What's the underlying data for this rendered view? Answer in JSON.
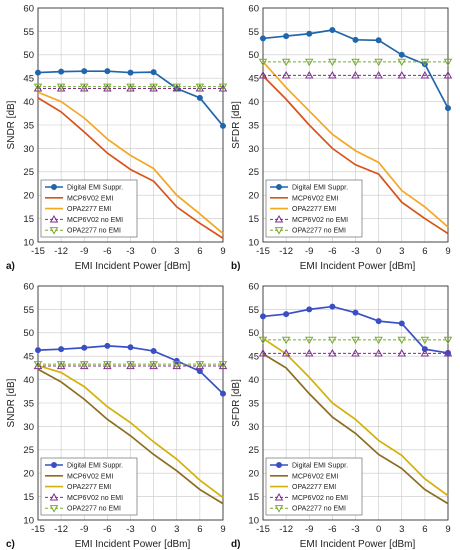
{
  "chart_data": [
    {
      "type": "line",
      "panel_label": "a)",
      "xlabel": "EMI Incident Power [dBm]",
      "ylabel": "SNDR [dB]",
      "x": [
        -15,
        -12,
        -9,
        -6,
        -3,
        0,
        3,
        6,
        9
      ],
      "xticks": [
        "-15",
        "-12",
        "-9",
        "-6",
        "-3",
        "0",
        "3",
        "6",
        "9"
      ],
      "ylim": [
        10,
        60
      ],
      "yticks": [
        "10",
        "15",
        "20",
        "25",
        "30",
        "35",
        "40",
        "45",
        "50",
        "55",
        "60"
      ],
      "grid": true,
      "legend_position": "lower-left",
      "series": [
        {
          "name": "Digital EMI Suppr.",
          "color": "#2166ac",
          "marker": "circle",
          "values": [
            46.2,
            46.4,
            46.5,
            46.5,
            46.2,
            46.3,
            42.8,
            40.8,
            34.8
          ]
        },
        {
          "name": "MCP6V02 EMI",
          "color": "#d95319",
          "marker": "none",
          "values": [
            40.8,
            37.8,
            33.5,
            29.0,
            25.5,
            23.0,
            17.5,
            14.0,
            10.8
          ]
        },
        {
          "name": "OPA2277 EMI",
          "color": "#f5a623",
          "marker": "none",
          "values": [
            42.0,
            40.0,
            36.5,
            32.0,
            28.5,
            25.7,
            20.0,
            16.0,
            11.8
          ]
        },
        {
          "name": "MCP6V02 no EMI",
          "color": "#7e2f8e",
          "marker": "triangle-up",
          "values": [
            42.8,
            42.8,
            42.8,
            42.8,
            42.8,
            42.8,
            42.8,
            42.8,
            42.8
          ]
        },
        {
          "name": "OPA2277 no EMI",
          "color": "#77ac30",
          "marker": "triangle-down",
          "values": [
            43.2,
            43.2,
            43.2,
            43.2,
            43.2,
            43.2,
            43.2,
            43.2,
            43.2
          ]
        }
      ]
    },
    {
      "type": "line",
      "panel_label": "b)",
      "xlabel": "EMI Incident Power [dBm]",
      "ylabel": "SFDR [dB]",
      "x": [
        -15,
        -12,
        -9,
        -6,
        -3,
        0,
        3,
        6,
        9
      ],
      "xticks": [
        "-15",
        "-12",
        "-9",
        "-6",
        "-3",
        "0",
        "3",
        "6",
        "9"
      ],
      "ylim": [
        10,
        60
      ],
      "yticks": [
        "10",
        "15",
        "20",
        "25",
        "30",
        "35",
        "40",
        "45",
        "50",
        "55",
        "60"
      ],
      "grid": true,
      "legend_position": "lower-left",
      "series": [
        {
          "name": "Digital EMI Suppr.",
          "color": "#2166ac",
          "marker": "circle",
          "values": [
            53.5,
            54.0,
            54.5,
            55.3,
            53.2,
            53.1,
            50.0,
            48.0,
            38.6
          ]
        },
        {
          "name": "MCP6V02 EMI",
          "color": "#d95319",
          "marker": "none",
          "values": [
            45.5,
            40.5,
            35.0,
            30.0,
            26.5,
            24.5,
            18.5,
            15.0,
            11.8
          ]
        },
        {
          "name": "OPA2277 EMI",
          "color": "#f5a623",
          "marker": "none",
          "values": [
            48.5,
            43.0,
            38.0,
            33.0,
            29.5,
            27.0,
            21.0,
            17.5,
            13.2
          ]
        },
        {
          "name": "MCP6V02 no EMI",
          "color": "#7e2f8e",
          "marker": "triangle-up",
          "values": [
            45.6,
            45.6,
            45.6,
            45.6,
            45.6,
            45.6,
            45.6,
            45.6,
            45.6
          ]
        },
        {
          "name": "OPA2277 no EMI",
          "color": "#77ac30",
          "marker": "triangle-down",
          "values": [
            48.5,
            48.5,
            48.5,
            48.5,
            48.5,
            48.5,
            48.5,
            48.5,
            48.5
          ]
        }
      ]
    },
    {
      "type": "line",
      "panel_label": "c)",
      "xlabel": "EMI Incident Power [dBm]",
      "ylabel": "SNDR [dB]",
      "x": [
        -15,
        -12,
        -9,
        -6,
        -3,
        0,
        3,
        6,
        9
      ],
      "xticks": [
        "-15",
        "-12",
        "-9",
        "-6",
        "-3",
        "0",
        "3",
        "6",
        "9"
      ],
      "ylim": [
        10,
        60
      ],
      "yticks": [
        "10",
        "15",
        "20",
        "25",
        "30",
        "35",
        "40",
        "45",
        "50",
        "55",
        "60"
      ],
      "grid": true,
      "legend_position": "lower-left",
      "series": [
        {
          "name": "Digital EMI Suppr.",
          "color": "#3a4fc4",
          "marker": "circle",
          "values": [
            46.3,
            46.5,
            46.8,
            47.2,
            46.9,
            46.1,
            44.0,
            41.8,
            37.0
          ]
        },
        {
          "name": "MCP6V02 EMI",
          "color": "#8c6d1f",
          "marker": "none",
          "values": [
            42.2,
            39.5,
            35.8,
            31.5,
            28.0,
            24.0,
            20.5,
            16.5,
            13.5
          ]
        },
        {
          "name": "OPA2277 EMI",
          "color": "#d4b106",
          "marker": "none",
          "values": [
            43.0,
            41.5,
            38.5,
            34.2,
            30.8,
            26.7,
            23.0,
            18.5,
            14.8
          ]
        },
        {
          "name": "MCP6V02 no EMI",
          "color": "#7e2f8e",
          "marker": "triangle-up",
          "values": [
            42.9,
            42.9,
            42.9,
            42.9,
            42.9,
            42.9,
            42.9,
            42.9,
            42.9
          ]
        },
        {
          "name": "OPA2277 no EMI",
          "color": "#77ac30",
          "marker": "triangle-down",
          "values": [
            43.3,
            43.3,
            43.3,
            43.3,
            43.3,
            43.3,
            43.3,
            43.3,
            43.3
          ]
        }
      ]
    },
    {
      "type": "line",
      "panel_label": "d)",
      "xlabel": "EMI Incident Power [dBm]",
      "ylabel": "SFDR [dB]",
      "x": [
        -15,
        -12,
        -9,
        -6,
        -3,
        0,
        3,
        6,
        9
      ],
      "xticks": [
        "-15",
        "-12",
        "-9",
        "-6",
        "-3",
        "0",
        "3",
        "6",
        "9"
      ],
      "ylim": [
        10,
        60
      ],
      "yticks": [
        "10",
        "15",
        "20",
        "25",
        "30",
        "35",
        "40",
        "45",
        "50",
        "55",
        "60"
      ],
      "grid": true,
      "legend_position": "lower-left",
      "series": [
        {
          "name": "Digital EMI Suppr.",
          "color": "#3a4fc4",
          "marker": "circle",
          "values": [
            53.5,
            54.0,
            55.0,
            55.6,
            54.3,
            52.5,
            52.0,
            46.5,
            45.7
          ]
        },
        {
          "name": "MCP6V02 EMI",
          "color": "#8c6d1f",
          "marker": "none",
          "values": [
            45.5,
            42.5,
            37.0,
            32.0,
            28.5,
            24.0,
            21.0,
            16.5,
            13.5
          ]
        },
        {
          "name": "OPA2277 EMI",
          "color": "#d4b106",
          "marker": "none",
          "values": [
            48.8,
            45.5,
            40.5,
            35.0,
            31.5,
            27.0,
            23.8,
            18.8,
            15.2
          ]
        },
        {
          "name": "MCP6V02 no EMI",
          "color": "#7e2f8e",
          "marker": "triangle-up",
          "values": [
            45.6,
            45.6,
            45.6,
            45.6,
            45.6,
            45.6,
            45.6,
            45.6,
            45.6
          ]
        },
        {
          "name": "OPA2277 no EMI",
          "color": "#77ac30",
          "marker": "triangle-down",
          "values": [
            48.5,
            48.5,
            48.5,
            48.5,
            48.5,
            48.5,
            48.5,
            48.5,
            48.5
          ]
        }
      ]
    }
  ]
}
